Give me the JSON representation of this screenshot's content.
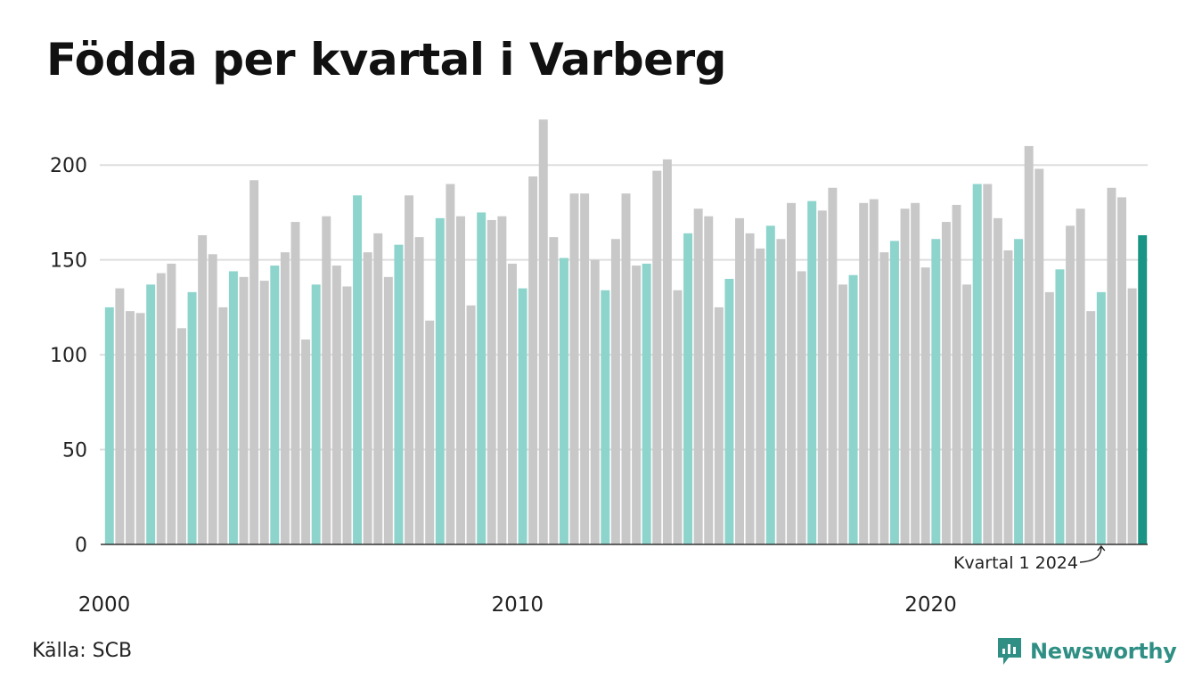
{
  "chart_data": {
    "type": "bar",
    "title": "Födda per kvartal i Varberg",
    "xlabel": "",
    "ylabel": "",
    "ylim": [
      0,
      225
    ],
    "yticks": [
      0,
      50,
      100,
      150,
      200
    ],
    "x_ticks": [
      "2000",
      "2010",
      "2020"
    ],
    "grid": true,
    "legend": "none",
    "start": "2000 Q1",
    "end": "2024 Q1",
    "values": [
      125,
      135,
      123,
      122,
      137,
      143,
      148,
      114,
      133,
      163,
      153,
      125,
      144,
      141,
      192,
      139,
      147,
      154,
      170,
      108,
      137,
      173,
      147,
      136,
      184,
      154,
      164,
      141,
      158,
      184,
      162,
      118,
      172,
      190,
      173,
      126,
      175,
      171,
      173,
      148,
      135,
      194,
      224,
      162,
      151,
      185,
      185,
      150,
      134,
      161,
      185,
      147,
      148,
      197,
      203,
      134,
      164,
      177,
      173,
      125,
      140,
      172,
      164,
      156,
      168,
      161,
      180,
      144,
      181,
      176,
      188,
      137,
      142,
      180,
      182,
      154,
      160,
      177,
      180,
      146,
      161,
      170,
      179,
      137,
      190,
      190,
      172,
      155,
      161,
      210,
      198,
      133,
      145,
      168,
      177,
      123,
      133,
      188,
      183,
      135,
      163
    ],
    "annotation": "Kvartal 1 2024",
    "colors": {
      "q1": "#8dd4cc",
      "other": "#c8c8c8",
      "highlight": "#1a9585",
      "grid": "#dddddd",
      "axis": "#333333"
    }
  },
  "footer": {
    "source": "Källa: SCB",
    "brand": "Newsworthy",
    "brand_icon": "newsworthy-logo-icon",
    "brand_color": "#2f8f84"
  }
}
